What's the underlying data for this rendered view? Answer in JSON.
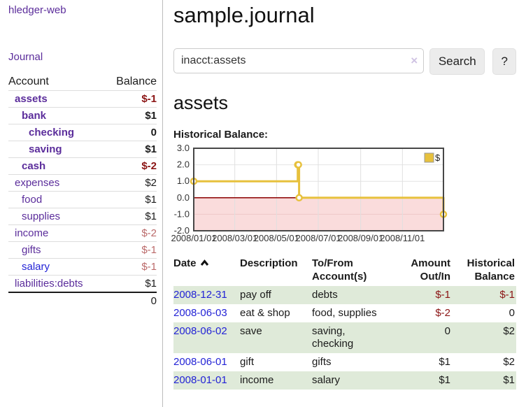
{
  "colors": {
    "purple": "#5b2d9b",
    "link-blue": "#2323d6",
    "neg-strong": "#8b1414",
    "neg-soft": "#bb6a6a",
    "row-green": "#dfead9"
  },
  "sidebar": {
    "app_title": "hledger-web",
    "journal_link": "Journal",
    "accounts": {
      "header_account": "Account",
      "header_balance": "Balance",
      "rows": [
        {
          "name": "assets",
          "balance": "$-1",
          "indent": 0,
          "matched": true,
          "balance_tone": "neg-strong"
        },
        {
          "name": "bank",
          "balance": "$1",
          "indent": 1,
          "matched": true,
          "balance_tone": "normal"
        },
        {
          "name": "checking",
          "balance": "0",
          "indent": 2,
          "matched": true,
          "balance_tone": "normal"
        },
        {
          "name": "saving",
          "balance": "$1",
          "indent": 2,
          "matched": true,
          "balance_tone": "normal"
        },
        {
          "name": "cash",
          "balance": "$-2",
          "indent": 1,
          "matched": true,
          "balance_tone": "neg-strong"
        },
        {
          "name": "expenses",
          "balance": "$2",
          "indent": 0,
          "matched": false,
          "balance_tone": "normal"
        },
        {
          "name": "food",
          "balance": "$1",
          "indent": 1,
          "matched": false,
          "balance_tone": "normal"
        },
        {
          "name": "supplies",
          "balance": "$1",
          "indent": 1,
          "matched": false,
          "balance_tone": "normal"
        },
        {
          "name": "income",
          "balance": "$-2",
          "indent": 0,
          "matched": false,
          "balance_tone": "neg-soft"
        },
        {
          "name": "gifts",
          "balance": "$-1",
          "indent": 1,
          "matched": false,
          "balance_tone": "neg-soft"
        },
        {
          "name": "salary",
          "balance": "$-1",
          "indent": 1,
          "matched": false,
          "balance_tone": "neg-soft",
          "link_tone": "blue"
        },
        {
          "name": "liabilities:debts",
          "balance": "$1",
          "indent": 0,
          "matched": false,
          "balance_tone": "normal"
        }
      ],
      "total": "0"
    }
  },
  "main": {
    "title": "sample.journal",
    "search": {
      "value": "inacct:assets",
      "clear_glyph": "×",
      "search_button": "Search",
      "help_button": "?"
    },
    "account_heading": "assets",
    "section_label": "Historical Balance:"
  },
  "chart_data": {
    "type": "line",
    "title": "Historical Balance:",
    "step": true,
    "x_range": [
      "2008-01-01",
      "2008-12-31"
    ],
    "ylim": [
      -2,
      3
    ],
    "y_ticks": [
      3.0,
      2.0,
      1.0,
      0.0,
      -1.0,
      -2.0
    ],
    "x_ticks": [
      "2008/01/01",
      "2008/03/01",
      "2008/05/01",
      "2008/07/01",
      "2008/09/01",
      "2008/11/01"
    ],
    "legend_position": "top-right",
    "negative_region_shaded": true,
    "grid": true,
    "series": [
      {
        "name": "$",
        "points": [
          [
            "2008-01-01",
            1
          ],
          [
            "2008-06-01",
            2
          ],
          [
            "2008-06-02",
            2
          ],
          [
            "2008-06-03",
            0
          ],
          [
            "2008-12-31",
            -1
          ]
        ]
      }
    ],
    "colors": {
      "line": "#e7c13d",
      "negative_fill": "#fadcdc",
      "zero_line": "#8b0000"
    }
  },
  "register": {
    "headers": {
      "date": "Date",
      "sort": "ascending",
      "description": "Description",
      "accounts": "To/From Account(s)",
      "amount": "Amount Out/In",
      "balance": "Historical Balance"
    },
    "rows": [
      {
        "date": "2008-12-31",
        "description": "pay off",
        "accounts": "debts",
        "amount": "$-1",
        "amount_negative": true,
        "balance": "$-1",
        "balance_negative": true
      },
      {
        "date": "2008-06-03",
        "description": "eat & shop",
        "accounts": "food, supplies",
        "amount": "$-2",
        "amount_negative": true,
        "balance": "0",
        "balance_negative": false
      },
      {
        "date": "2008-06-02",
        "description": "save",
        "accounts": "saving, checking",
        "amount": "0",
        "amount_negative": false,
        "balance": "$2",
        "balance_negative": false
      },
      {
        "date": "2008-06-01",
        "description": "gift",
        "accounts": "gifts",
        "amount": "$1",
        "amount_negative": false,
        "balance": "$2",
        "balance_negative": false
      },
      {
        "date": "2008-01-01",
        "description": "income",
        "accounts": "salary",
        "amount": "$1",
        "amount_negative": false,
        "balance": "$1",
        "balance_negative": false
      }
    ]
  }
}
